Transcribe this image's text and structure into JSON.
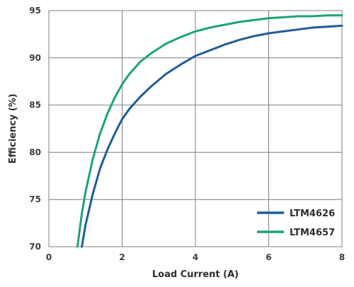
{
  "chart_data": {
    "type": "line",
    "title": "",
    "xlabel": "Load Current (A)",
    "ylabel": "Efficiency (%)",
    "xlim": [
      0,
      8
    ],
    "ylim": [
      70,
      95
    ],
    "xticks": [
      0,
      2,
      4,
      6,
      8
    ],
    "yticks": [
      70,
      75,
      80,
      85,
      90,
      95
    ],
    "grid": true,
    "legend": "bottom-right",
    "series": [
      {
        "name": "LTM4626",
        "color": "#1f5c99",
        "x": [
          0.9,
          1.0,
          1.2,
          1.4,
          1.6,
          1.8,
          2.0,
          2.2,
          2.5,
          2.8,
          3.2,
          3.6,
          4.0,
          4.4,
          4.8,
          5.2,
          5.6,
          6.0,
          6.4,
          6.8,
          7.2,
          7.6,
          8.0
        ],
        "y": [
          70.0,
          72.3,
          75.6,
          78.3,
          80.3,
          82.0,
          83.5,
          84.6,
          85.9,
          87.0,
          88.3,
          89.3,
          90.2,
          90.8,
          91.4,
          91.9,
          92.3,
          92.6,
          92.8,
          93.0,
          93.2,
          93.3,
          93.4
        ]
      },
      {
        "name": "LTM4657",
        "color": "#1ca27c",
        "x": [
          0.78,
          0.9,
          1.0,
          1.2,
          1.4,
          1.6,
          1.8,
          2.0,
          2.2,
          2.5,
          2.8,
          3.2,
          3.6,
          4.0,
          4.4,
          4.8,
          5.2,
          5.6,
          6.0,
          6.4,
          6.8,
          7.2,
          7.6,
          8.0
        ],
        "y": [
          70.0,
          73.5,
          75.8,
          79.3,
          82.0,
          84.1,
          85.8,
          87.2,
          88.3,
          89.6,
          90.5,
          91.5,
          92.2,
          92.8,
          93.2,
          93.5,
          93.8,
          94.0,
          94.2,
          94.3,
          94.4,
          94.4,
          94.5,
          94.5
        ]
      }
    ]
  }
}
